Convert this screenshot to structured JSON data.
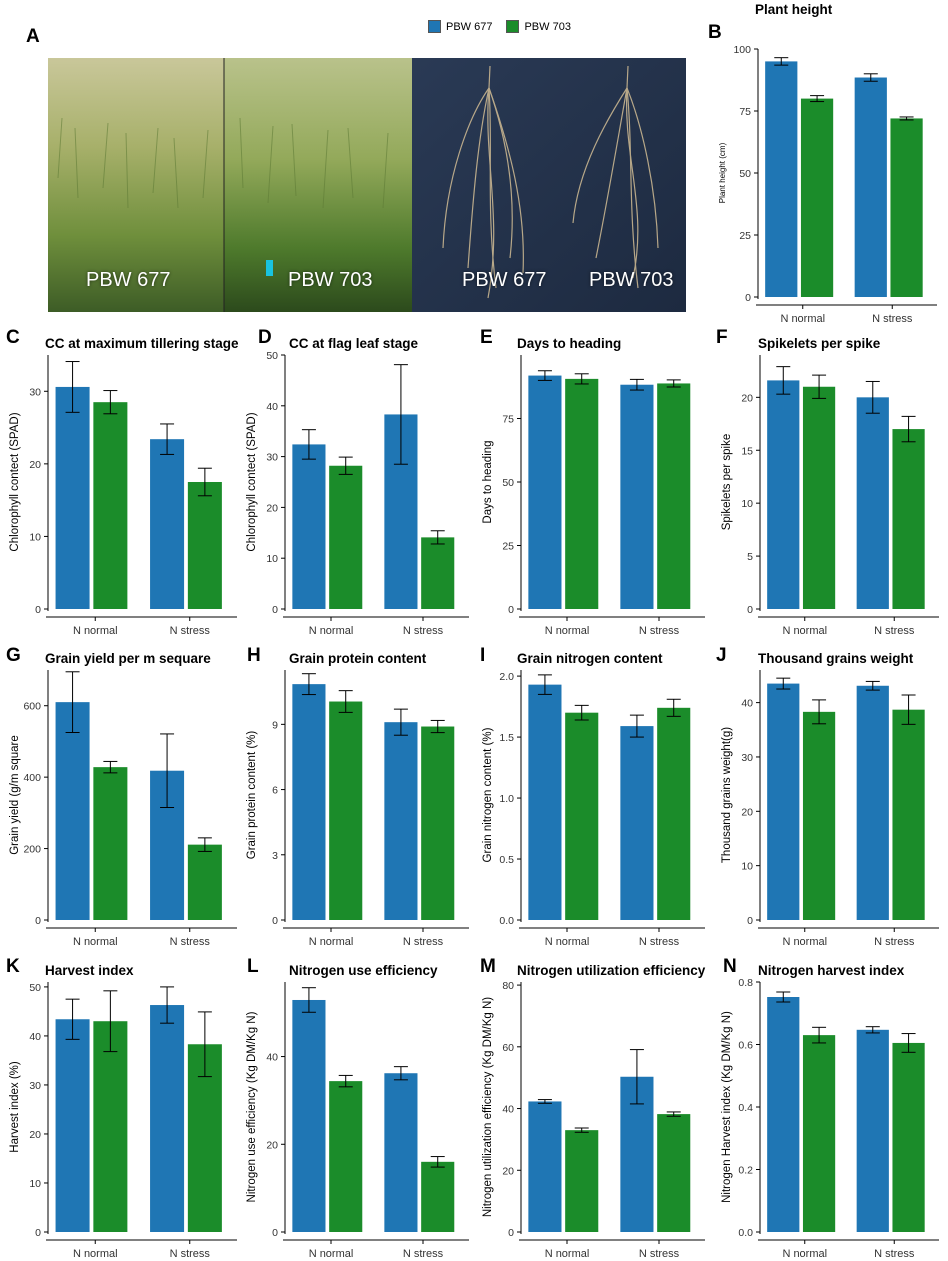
{
  "figure": {
    "colors": {
      "PBW 677": "#1f76b4",
      "PBW 703": "#1b8c2a"
    },
    "legend": [
      "PBW 677",
      "PBW 703"
    ],
    "photo": {
      "letter": "A",
      "labels": [
        "PBW 677",
        "PBW 703",
        "PBW 677",
        "PBW 703"
      ]
    }
  },
  "chart_data": [
    {
      "id": "B",
      "letter": "B",
      "type": "bar",
      "title": "Plant height",
      "ylabel": "Plant height (cm)",
      "categories": [
        "N normal",
        "N stress"
      ],
      "ylim": [
        0,
        100
      ],
      "yticks": [
        0,
        25,
        50,
        75,
        100
      ],
      "series": [
        {
          "name": "PBW 677",
          "values": [
            95,
            88.5
          ],
          "err": [
            1.5,
            1.5
          ]
        },
        {
          "name": "PBW 703",
          "values": [
            80,
            72
          ],
          "err": [
            1.2,
            0.6
          ]
        }
      ]
    },
    {
      "id": "C",
      "letter": "C",
      "type": "bar",
      "title": "CC at maximum tillering stage",
      "ylabel": "Chlorophyll contect (SPAD)",
      "categories": [
        "N normal",
        "N stress"
      ],
      "ylim": [
        0,
        35
      ],
      "yticks": [
        0,
        10,
        20,
        30
      ],
      "series": [
        {
          "name": "PBW 677",
          "values": [
            30.6,
            23.4
          ],
          "err": [
            3.5,
            2.1
          ]
        },
        {
          "name": "PBW 703",
          "values": [
            28.5,
            17.5
          ],
          "err": [
            1.6,
            1.9
          ]
        }
      ]
    },
    {
      "id": "D",
      "letter": "D",
      "type": "bar",
      "title": "CC at flag leaf stage",
      "ylabel": "Chlorophyll contect (SPAD)",
      "categories": [
        "N normal",
        "N stress"
      ],
      "ylim": [
        0,
        50
      ],
      "yticks": [
        0,
        10,
        20,
        30,
        40,
        50
      ],
      "series": [
        {
          "name": "PBW 677",
          "values": [
            32.4,
            38.3
          ],
          "err": [
            2.9,
            9.8
          ]
        },
        {
          "name": "PBW 703",
          "values": [
            28.2,
            14.1
          ],
          "err": [
            1.7,
            1.3
          ]
        }
      ]
    },
    {
      "id": "E",
      "letter": "E",
      "type": "bar",
      "title": "Days to heading",
      "ylabel": "Days to heading",
      "categories": [
        "N normal",
        "N stress"
      ],
      "ylim": [
        0,
        100
      ],
      "yticks": [
        0,
        25,
        50,
        75
      ],
      "series": [
        {
          "name": "PBW 677",
          "values": [
            91.9,
            88.3
          ],
          "err": [
            1.9,
            2.1
          ]
        },
        {
          "name": "PBW 703",
          "values": [
            90.6,
            88.8
          ],
          "err": [
            2.0,
            1.4
          ]
        }
      ]
    },
    {
      "id": "F",
      "letter": "F",
      "type": "bar",
      "title": "Spikelets per spike",
      "ylabel": "Spikelets per spike",
      "categories": [
        "N normal",
        "N stress"
      ],
      "ylim": [
        0,
        24
      ],
      "yticks": [
        0,
        5,
        10,
        15,
        20
      ],
      "series": [
        {
          "name": "PBW 677",
          "values": [
            21.6,
            20.0
          ],
          "err": [
            1.3,
            1.5
          ]
        },
        {
          "name": "PBW 703",
          "values": [
            21.0,
            17.0
          ],
          "err": [
            1.1,
            1.2
          ]
        }
      ]
    },
    {
      "id": "G",
      "letter": "G",
      "type": "bar",
      "title": "Grain yield per m sequare",
      "ylabel": "Grain yield (g/m square",
      "categories": [
        "N normal",
        "N stress"
      ],
      "ylim": [
        0,
        700
      ],
      "yticks": [
        0,
        200,
        400,
        600
      ],
      "series": [
        {
          "name": "PBW 677",
          "values": [
            610,
            418
          ],
          "err": [
            85,
            103
          ]
        },
        {
          "name": "PBW 703",
          "values": [
            428,
            211
          ],
          "err": [
            16,
            19
          ]
        }
      ]
    },
    {
      "id": "H",
      "letter": "H",
      "type": "bar",
      "title": "Grain protein content",
      "ylabel": "Grain protein content (%)",
      "categories": [
        "N normal",
        "N stress"
      ],
      "ylim": [
        0,
        11.5
      ],
      "yticks": [
        0,
        3,
        6,
        9
      ],
      "series": [
        {
          "name": "PBW 677",
          "values": [
            10.85,
            9.1
          ],
          "err": [
            0.48,
            0.6
          ]
        },
        {
          "name": "PBW 703",
          "values": [
            10.05,
            8.9
          ],
          "err": [
            0.5,
            0.28
          ]
        }
      ]
    },
    {
      "id": "I",
      "letter": "I",
      "type": "bar",
      "title": "Grain nitrogen content",
      "ylabel": "Grain nitrogen content (%)",
      "categories": [
        "N normal",
        "N stress"
      ],
      "ylim": [
        0,
        2.05
      ],
      "yticks": [
        0,
        0.5,
        1.0,
        1.5,
        2.0
      ],
      "tickdec": 1,
      "series": [
        {
          "name": "PBW 677",
          "values": [
            1.93,
            1.59
          ],
          "err": [
            0.08,
            0.09
          ]
        },
        {
          "name": "PBW 703",
          "values": [
            1.7,
            1.74
          ],
          "err": [
            0.06,
            0.07
          ]
        }
      ]
    },
    {
      "id": "J",
      "letter": "J",
      "type": "bar",
      "title": "Thousand grains weight",
      "ylabel": "Thousand grains weight(g)",
      "categories": [
        "N normal",
        "N stress"
      ],
      "ylim": [
        0,
        46
      ],
      "yticks": [
        0,
        10,
        20,
        30,
        40
      ],
      "series": [
        {
          "name": "PBW 677",
          "values": [
            43.5,
            43.1
          ],
          "err": [
            1.0,
            0.8
          ]
        },
        {
          "name": "PBW 703",
          "values": [
            38.3,
            38.7
          ],
          "err": [
            2.2,
            2.7
          ]
        }
      ]
    },
    {
      "id": "K",
      "letter": "K",
      "type": "bar",
      "title": "Harvest index",
      "ylabel": "Harvest index (%)",
      "categories": [
        "N normal",
        "N stress"
      ],
      "ylim": [
        0,
        51
      ],
      "yticks": [
        0,
        10,
        20,
        30,
        40,
        50
      ],
      "series": [
        {
          "name": "PBW 677",
          "values": [
            43.4,
            46.3
          ],
          "err": [
            4.1,
            3.7
          ]
        },
        {
          "name": "PBW 703",
          "values": [
            43.0,
            38.3
          ],
          "err": [
            6.2,
            6.6
          ]
        }
      ]
    },
    {
      "id": "L",
      "letter": "L",
      "type": "bar",
      "title": "Nitrogen use efficiency",
      "ylabel": "Nitrogen use efficiency (Kg DM/Kg N)",
      "categories": [
        "N normal",
        "N stress"
      ],
      "ylim": [
        0,
        57
      ],
      "yticks": [
        0,
        20,
        40
      ],
      "series": [
        {
          "name": "PBW 677",
          "values": [
            52.9,
            36.2
          ],
          "err": [
            2.8,
            1.5
          ]
        },
        {
          "name": "PBW 703",
          "values": [
            34.4,
            16.0
          ],
          "err": [
            1.3,
            1.2
          ]
        }
      ]
    },
    {
      "id": "M",
      "letter": "M",
      "type": "bar",
      "title": "Nitrogen utilization efficiency",
      "ylabel": "Nitrogen utilization efficiency (Kg DM/Kg N)",
      "categories": [
        "N normal",
        "N stress"
      ],
      "ylim": [
        0,
        81
      ],
      "yticks": [
        0,
        20,
        40,
        60,
        80
      ],
      "series": [
        {
          "name": "PBW 677",
          "values": [
            42.3,
            50.3
          ],
          "err": [
            0.6,
            8.8
          ]
        },
        {
          "name": "PBW 703",
          "values": [
            33.0,
            38.2
          ],
          "err": [
            0.7,
            0.7
          ]
        }
      ]
    },
    {
      "id": "N",
      "letter": "N",
      "type": "bar",
      "title": "Nitrogen harvest index",
      "ylabel": "Nitrogen Harvest index (Kg DM/Kg N)",
      "categories": [
        "N normal",
        "N stress"
      ],
      "ylim": [
        0,
        0.8
      ],
      "yticks": [
        0.0,
        0.2,
        0.4,
        0.6,
        0.8
      ],
      "tickdec": 1,
      "series": [
        {
          "name": "PBW 677",
          "values": [
            0.752,
            0.647
          ],
          "err": [
            0.016,
            0.01
          ]
        },
        {
          "name": "PBW 703",
          "values": [
            0.63,
            0.605
          ],
          "err": [
            0.025,
            0.03
          ]
        }
      ]
    }
  ]
}
